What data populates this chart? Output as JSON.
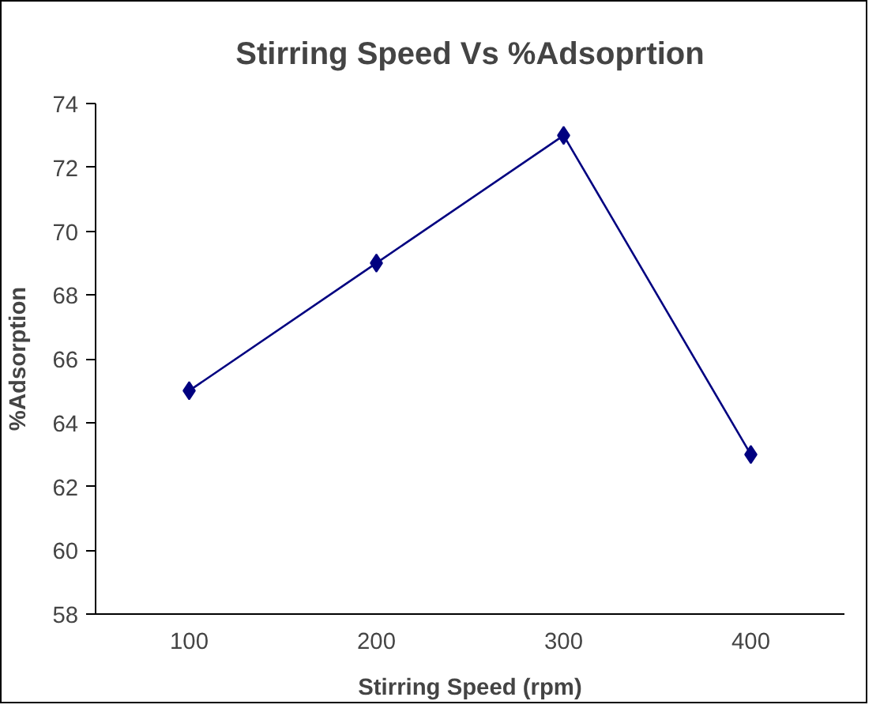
{
  "chart_data": {
    "type": "line",
    "title": "Stirring Speed Vs %Adsoprtion",
    "xlabel": "Stirring Speed (rpm)",
    "ylabel": "%Adsorption",
    "categories": [
      "100",
      "200",
      "300",
      "400"
    ],
    "series": [
      {
        "color": "#000080",
        "values": [
          65,
          69,
          73,
          63
        ]
      }
    ],
    "ylim": [
      58,
      74
    ],
    "yticks": [
      58,
      60,
      62,
      64,
      66,
      68,
      70,
      72,
      74
    ],
    "marker": "diamond",
    "line_style": "solid"
  }
}
